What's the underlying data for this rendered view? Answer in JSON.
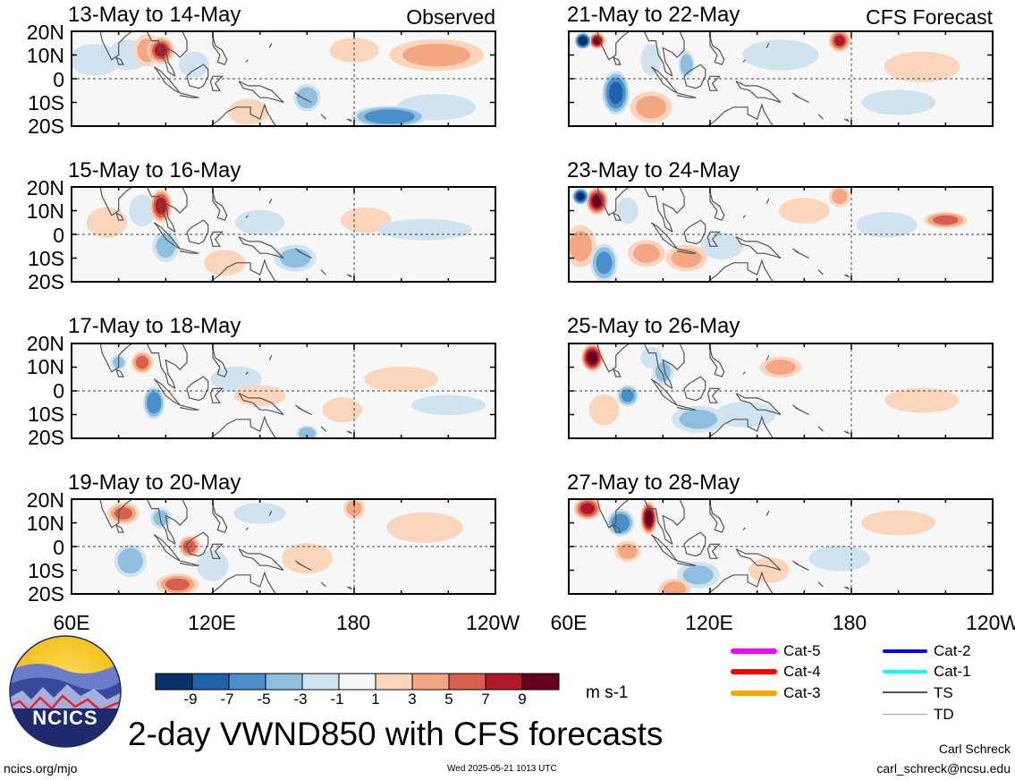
{
  "header": {
    "observed_label": "Observed",
    "forecast_label": "CFS Forecast"
  },
  "panels": [
    {
      "date": "13-May to 14-May",
      "column": "observed"
    },
    {
      "date": "15-May to 16-May",
      "column": "observed"
    },
    {
      "date": "17-May to 18-May",
      "column": "observed"
    },
    {
      "date": "19-May to 20-May",
      "column": "observed"
    },
    {
      "date": "21-May to 22-May",
      "column": "forecast"
    },
    {
      "date": "23-May to 24-May",
      "column": "forecast"
    },
    {
      "date": "25-May to 26-May",
      "column": "forecast"
    },
    {
      "date": "27-May to 28-May",
      "column": "forecast"
    }
  ],
  "axes": {
    "lat_labels": [
      "20N",
      "10N",
      "0",
      "10S",
      "20S"
    ],
    "lon_labels": [
      "60E",
      "120E",
      "180",
      "120W"
    ],
    "lat_range": [
      -20,
      20
    ],
    "lon_range": [
      60,
      240
    ]
  },
  "colorbar": {
    "ticks": [
      "-9",
      "-7",
      "-5",
      "-3",
      "-1",
      "1",
      "3",
      "5",
      "7",
      "9"
    ],
    "colors": [
      "#08306b",
      "#1f63ad",
      "#4a90c8",
      "#8fbfdf",
      "#cfe3f1",
      "#f7f7f7",
      "#fcd5bd",
      "#f4a582",
      "#d6604d",
      "#b2182b",
      "#67001f"
    ],
    "unit": "m s-1"
  },
  "storm_legend": [
    {
      "label": "Cat-5",
      "color": "#ff00ff",
      "width": 6
    },
    {
      "label": "Cat-4",
      "color": "#ff0000",
      "width": 6
    },
    {
      "label": "Cat-3",
      "color": "#ffa500",
      "width": 6
    },
    {
      "label": "Cat-2",
      "color": "#0000ff",
      "width": 4
    },
    {
      "label": "Cat-1",
      "color": "#00ffff",
      "width": 4
    },
    {
      "label": "TS",
      "color": "#555555",
      "width": 2
    },
    {
      "label": "TD",
      "color": "#aaaaaa",
      "width": 1
    }
  ],
  "logo": {
    "text": "NCICS"
  },
  "main_title": "2-day VWND850 with CFS forecasts",
  "footer": {
    "url": "ncics.org/mjo",
    "timestamp": "Wed 2025-05-21 1013 UTC",
    "author": "Carl Schreck",
    "email": "carl_schreck@ncsu.edu"
  },
  "chart_data": {
    "type": "heatmap",
    "variable": "VWND850",
    "unit": "m s-1",
    "levels": [
      -9,
      -7,
      -5,
      -3,
      -1,
      1,
      3,
      5,
      7,
      9
    ],
    "lat_range": [
      -20,
      20
    ],
    "lon_range": [
      60,
      240
    ]
  },
  "anomalies": [
    [
      {
        "lon": 98,
        "lat": 12,
        "v": 7,
        "sx": 5,
        "sy": 5
      },
      {
        "lon": 92,
        "lat": 12,
        "v": 4,
        "sx": 5,
        "sy": 6
      },
      {
        "lon": 70,
        "lat": 8,
        "v": -3,
        "sx": 10,
        "sy": 6
      },
      {
        "lon": 84,
        "lat": 10,
        "v": -2,
        "sx": 8,
        "sy": 6
      },
      {
        "lon": 160,
        "lat": -8,
        "v": -5,
        "sx": 5,
        "sy": 5
      },
      {
        "lon": 195,
        "lat": -16,
        "v": -7,
        "sx": 14,
        "sy": 4
      },
      {
        "lon": 215,
        "lat": -12,
        "v": -3,
        "sx": 15,
        "sy": 5
      },
      {
        "lon": 215,
        "lat": 10,
        "v": 3,
        "sx": 18,
        "sy": 6
      },
      {
        "lon": 180,
        "lat": 12,
        "v": 1.5,
        "sx": 10,
        "sy": 5
      },
      {
        "lon": 135,
        "lat": -14,
        "v": 2,
        "sx": 8,
        "sy": 5
      },
      {
        "lon": 112,
        "lat": 6,
        "v": -2,
        "sx": 6,
        "sy": 5
      }
    ],
    [
      {
        "lon": 98,
        "lat": 12,
        "v": 8,
        "sx": 4,
        "sy": 6
      },
      {
        "lon": 90,
        "lat": 10,
        "v": -3,
        "sx": 5,
        "sy": 6
      },
      {
        "lon": 100,
        "lat": -5,
        "v": -4,
        "sx": 5,
        "sy": 6
      },
      {
        "lon": 155,
        "lat": -10,
        "v": -4,
        "sx": 8,
        "sy": 5
      },
      {
        "lon": 125,
        "lat": -12,
        "v": 2.5,
        "sx": 8,
        "sy": 5
      },
      {
        "lon": 210,
        "lat": 2,
        "v": -3,
        "sx": 18,
        "sy": 4
      },
      {
        "lon": 185,
        "lat": 6,
        "v": 2,
        "sx": 10,
        "sy": 5
      },
      {
        "lon": 75,
        "lat": 5,
        "v": 2,
        "sx": 8,
        "sy": 6
      },
      {
        "lon": 140,
        "lat": 5,
        "v": -1.5,
        "sx": 10,
        "sy": 5
      }
    ],
    [
      {
        "lon": 90,
        "lat": 12,
        "v": 6,
        "sx": 4,
        "sy": 4
      },
      {
        "lon": 80,
        "lat": 12,
        "v": -4,
        "sx": 3,
        "sy": 3
      },
      {
        "lon": 95,
        "lat": -5,
        "v": -7,
        "sx": 4,
        "sy": 6
      },
      {
        "lon": 160,
        "lat": -18,
        "v": -5,
        "sx": 4,
        "sy": 3
      },
      {
        "lon": 140,
        "lat": -2,
        "v": 2.5,
        "sx": 10,
        "sy": 4
      },
      {
        "lon": 130,
        "lat": 5,
        "v": -2,
        "sx": 10,
        "sy": 5
      },
      {
        "lon": 200,
        "lat": 5,
        "v": 1.5,
        "sx": 15,
        "sy": 5
      },
      {
        "lon": 220,
        "lat": -6,
        "v": -1.5,
        "sx": 15,
        "sy": 4
      },
      {
        "lon": 175,
        "lat": -8,
        "v": 1.5,
        "sx": 8,
        "sy": 5
      }
    ],
    [
      {
        "lon": 82,
        "lat": 14,
        "v": 5,
        "sx": 6,
        "sy": 4
      },
      {
        "lon": 98,
        "lat": 12,
        "v": -4,
        "sx": 4,
        "sy": 4
      },
      {
        "lon": 110,
        "lat": 0,
        "v": 6,
        "sx": 4,
        "sy": 4
      },
      {
        "lon": 85,
        "lat": -6,
        "v": -5,
        "sx": 6,
        "sy": 6
      },
      {
        "lon": 105,
        "lat": -16,
        "v": 5,
        "sx": 8,
        "sy": 4
      },
      {
        "lon": 180,
        "lat": 16,
        "v": 4,
        "sx": 4,
        "sy": 4
      },
      {
        "lon": 140,
        "lat": 14,
        "v": -3,
        "sx": 10,
        "sy": 4
      },
      {
        "lon": 120,
        "lat": -8,
        "v": -3,
        "sx": 6,
        "sy": 6
      },
      {
        "lon": 210,
        "lat": 8,
        "v": 2,
        "sx": 15,
        "sy": 6
      },
      {
        "lon": 160,
        "lat": -5,
        "v": 2,
        "sx": 10,
        "sy": 6
      }
    ],
    [
      {
        "lon": 66,
        "lat": 16,
        "v": -11,
        "sx": 3,
        "sy": 3
      },
      {
        "lon": 72,
        "lat": 16,
        "v": 9,
        "sx": 3,
        "sy": 3
      },
      {
        "lon": 80,
        "lat": -6,
        "v": -8,
        "sx": 5,
        "sy": 8
      },
      {
        "lon": 95,
        "lat": 8,
        "v": -3,
        "sx": 4,
        "sy": 6
      },
      {
        "lon": 110,
        "lat": 6,
        "v": -5,
        "sx": 3,
        "sy": 5
      },
      {
        "lon": 175,
        "lat": 16,
        "v": 7,
        "sx": 4,
        "sy": 4
      },
      {
        "lon": 95,
        "lat": -12,
        "v": 3,
        "sx": 8,
        "sy": 6
      },
      {
        "lon": 150,
        "lat": 10,
        "v": -2,
        "sx": 15,
        "sy": 6
      },
      {
        "lon": 210,
        "lat": 5,
        "v": 2,
        "sx": 15,
        "sy": 6
      },
      {
        "lon": 200,
        "lat": -10,
        "v": -1.5,
        "sx": 15,
        "sy": 5
      }
    ],
    [
      {
        "lon": 65,
        "lat": 16,
        "v": -10,
        "sx": 3,
        "sy": 3
      },
      {
        "lon": 72,
        "lat": 14,
        "v": 9,
        "sx": 4,
        "sy": 5
      },
      {
        "lon": 65,
        "lat": -5,
        "v": 3,
        "sx": 6,
        "sy": 8
      },
      {
        "lon": 75,
        "lat": -12,
        "v": -6,
        "sx": 5,
        "sy": 7
      },
      {
        "lon": 93,
        "lat": -8,
        "v": 4,
        "sx": 7,
        "sy": 5
      },
      {
        "lon": 110,
        "lat": -10,
        "v": 3,
        "sx": 8,
        "sy": 5
      },
      {
        "lon": 125,
        "lat": -5,
        "v": -3,
        "sx": 8,
        "sy": 5
      },
      {
        "lon": 175,
        "lat": 16,
        "v": 4,
        "sx": 4,
        "sy": 4
      },
      {
        "lon": 220,
        "lat": 6,
        "v": 6,
        "sx": 8,
        "sy": 3
      },
      {
        "lon": 195,
        "lat": 4,
        "v": -2,
        "sx": 12,
        "sy": 5
      },
      {
        "lon": 160,
        "lat": 10,
        "v": 2,
        "sx": 10,
        "sy": 5
      },
      {
        "lon": 85,
        "lat": 10,
        "v": -3,
        "sx": 4,
        "sy": 5
      }
    ],
    [
      {
        "lon": 70,
        "lat": 14,
        "v": 10,
        "sx": 4,
        "sy": 5
      },
      {
        "lon": 85,
        "lat": -2,
        "v": -6,
        "sx": 4,
        "sy": 4
      },
      {
        "lon": 100,
        "lat": 8,
        "v": -4,
        "sx": 4,
        "sy": 5
      },
      {
        "lon": 95,
        "lat": 14,
        "v": -3,
        "sx": 4,
        "sy": 4
      },
      {
        "lon": 115,
        "lat": -12,
        "v": -4,
        "sx": 10,
        "sy": 5
      },
      {
        "lon": 150,
        "lat": 10,
        "v": 3,
        "sx": 8,
        "sy": 4
      },
      {
        "lon": 75,
        "lat": -8,
        "v": 2,
        "sx": 6,
        "sy": 6
      },
      {
        "lon": 135,
        "lat": -10,
        "v": -2,
        "sx": 12,
        "sy": 5
      },
      {
        "lon": 210,
        "lat": -4,
        "v": 1.5,
        "sx": 15,
        "sy": 5
      }
    ],
    [
      {
        "lon": 68,
        "lat": 16,
        "v": 8,
        "sx": 5,
        "sy": 4
      },
      {
        "lon": 82,
        "lat": 10,
        "v": -7,
        "sx": 5,
        "sy": 5
      },
      {
        "lon": 94,
        "lat": 12,
        "v": 10,
        "sx": 3,
        "sy": 6
      },
      {
        "lon": 85,
        "lat": -2,
        "v": 3,
        "sx": 5,
        "sy": 4
      },
      {
        "lon": 115,
        "lat": -12,
        "v": -4,
        "sx": 8,
        "sy": 5
      },
      {
        "lon": 105,
        "lat": -18,
        "v": 4,
        "sx": 6,
        "sy": 4
      },
      {
        "lon": 175,
        "lat": -5,
        "v": -2,
        "sx": 12,
        "sy": 5
      },
      {
        "lon": 200,
        "lat": 10,
        "v": 1.5,
        "sx": 15,
        "sy": 5
      },
      {
        "lon": 145,
        "lat": -10,
        "v": 2,
        "sx": 8,
        "sy": 5
      }
    ]
  ]
}
